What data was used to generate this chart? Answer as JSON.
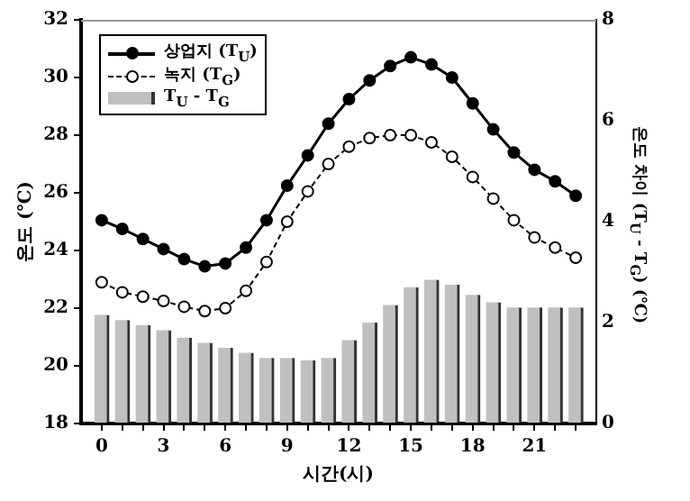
{
  "chart_data": {
    "type": "line",
    "xlabel": "시간(시)",
    "ylabel": "온도 (℃)",
    "y2label": "온도 차이 (T$_{U}$ - T$_{G}$) (℃)",
    "x": [
      0,
      1,
      2,
      3,
      4,
      5,
      6,
      7,
      8,
      9,
      10,
      11,
      12,
      13,
      14,
      15,
      16,
      17,
      18,
      19,
      20,
      21,
      22,
      23
    ],
    "xlim": [
      -1,
      24
    ],
    "xticks": [
      0,
      {
        "value": 1,
        "label": null
      },
      {
        "value": 2,
        "label": null
      },
      3,
      {
        "value": 4,
        "label": null
      },
      {
        "value": 5,
        "label": null
      },
      6,
      {
        "value": 7,
        "label": null
      },
      {
        "value": 8,
        "label": null
      },
      9,
      {
        "value": 10,
        "label": null
      },
      {
        "value": 11,
        "label": null
      },
      12,
      {
        "value": 13,
        "label": null
      },
      {
        "value": 14,
        "label": null
      },
      15,
      {
        "value": 16,
        "label": null
      },
      {
        "value": 17,
        "label": null
      },
      18,
      {
        "value": 19,
        "label": null
      },
      {
        "value": 20,
        "label": null
      },
      21,
      {
        "value": 22,
        "label": null
      },
      {
        "value": 23,
        "label": null
      }
    ],
    "ylim": [
      18,
      32
    ],
    "yticks": [
      18,
      20,
      22,
      24,
      26,
      28,
      30,
      32
    ],
    "y2lim": [
      0,
      8
    ],
    "y2ticks": [
      0,
      2,
      4,
      6,
      8
    ],
    "grid": false,
    "legend": "top left",
    "marker": "circle",
    "series": [
      {
        "name": "상업지 (T$_{U}$)",
        "color": "#000000",
        "line_style": "solid",
        "values": [
          25.05,
          24.75,
          24.4,
          24.05,
          23.7,
          23.45,
          23.55,
          24.1,
          25.05,
          26.25,
          27.3,
          28.4,
          29.25,
          29.9,
          30.4,
          30.7,
          30.45,
          30.0,
          29.1,
          28.2,
          27.4,
          26.8,
          26.4,
          25.9
        ]
      },
      {
        "name": "녹지 (T$_{G}$)",
        "color": "#000000",
        "line_style": "dashed",
        "values": [
          22.9,
          22.55,
          22.4,
          22.25,
          22.05,
          21.9,
          22.0,
          22.6,
          23.6,
          25.0,
          26.05,
          27.0,
          27.6,
          27.9,
          28.0,
          28.0,
          27.75,
          27.25,
          26.55,
          25.8,
          25.05,
          24.45,
          24.1,
          23.75
        ]
      },
      {
        "name": "T$_{U}$ - T$_{G}$",
        "type": "bar",
        "axis": "y2",
        "color": "#c0c0c0",
        "values": [
          2.15,
          2.05,
          1.95,
          1.85,
          1.7,
          1.6,
          1.5,
          1.4,
          1.3,
          1.3,
          1.25,
          1.3,
          1.65,
          2.0,
          2.35,
          2.7,
          2.85,
          2.75,
          2.55,
          2.4,
          2.3,
          2.3,
          2.3,
          2.3
        ]
      }
    ]
  }
}
